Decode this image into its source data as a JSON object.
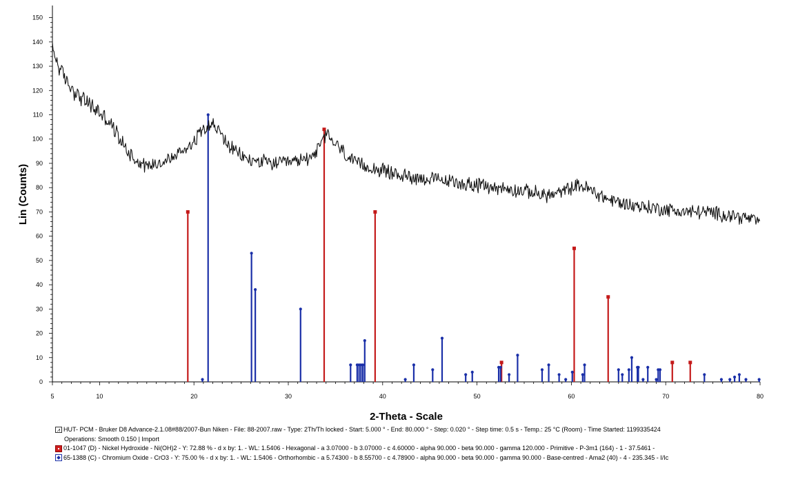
{
  "chart_data": {
    "type": "line",
    "xlabel": "2-Theta - Scale",
    "ylabel": "Lin (Counts)",
    "xlim": [
      5,
      80
    ],
    "ylim": [
      0,
      155
    ],
    "x_ticks": [
      5,
      10,
      20,
      30,
      40,
      50,
      60,
      70,
      80
    ],
    "y_ticks": [
      0,
      10,
      20,
      30,
      40,
      50,
      60,
      70,
      80,
      90,
      100,
      110,
      120,
      130,
      140,
      150
    ],
    "grid": false,
    "colors": {
      "measured": "#111111",
      "nickel_hydroxide": "#c41a1a",
      "chromium_oxide": "#1a2fa8"
    },
    "measured_profile": {
      "x": [
        5,
        5.5,
        6,
        7,
        8,
        9,
        10,
        11,
        12,
        13,
        14,
        15,
        16,
        17,
        18,
        19,
        20,
        20.5,
        21,
        21.5,
        22,
        22.5,
        23,
        24,
        25,
        26,
        27,
        28,
        29,
        30,
        31,
        32,
        33,
        33.5,
        34,
        35,
        36,
        37,
        38,
        39,
        40,
        42,
        44,
        46,
        48,
        50,
        52,
        54,
        56,
        57,
        58,
        59,
        60,
        61,
        62,
        63,
        64,
        66,
        68,
        70,
        72,
        74,
        76,
        78,
        80
      ],
      "y": [
        137,
        132,
        127,
        121,
        117,
        114,
        111,
        107,
        101,
        95,
        91,
        89,
        90,
        91,
        93,
        96,
        99,
        102,
        105,
        106,
        106,
        104,
        101,
        96,
        93,
        91,
        91,
        90,
        90,
        90,
        91,
        92,
        95,
        98,
        102,
        98,
        94,
        90,
        89,
        88,
        87,
        85,
        84,
        83,
        82,
        81,
        80,
        79,
        78,
        77,
        77,
        78,
        80,
        81,
        79,
        77,
        75,
        73,
        72,
        71,
        70,
        70,
        69,
        68,
        66
      ]
    },
    "nickel_hydroxide_sticks": {
      "x": [
        19.35,
        33.8,
        39.2,
        52.6,
        60.3,
        63.9,
        70.7,
        72.6
      ],
      "y": [
        70,
        104,
        70,
        8,
        55,
        35,
        8,
        8
      ]
    },
    "chromium_oxide_sticks": {
      "x": [
        20.9,
        21.5,
        26.1,
        26.5,
        31.3,
        36.6,
        37.3,
        37.5,
        37.7,
        37.9,
        38.1,
        42.4,
        43.3,
        45.3,
        46.3,
        48.8,
        49.5,
        52.3,
        52.5,
        53.4,
        54.3,
        56.9,
        57.6,
        58.7,
        59.4,
        60.1,
        61.2,
        61.4,
        65.0,
        65.4,
        66.1,
        66.4,
        67.0,
        67.1,
        67.6,
        68.1,
        69.0,
        69.2,
        69.4,
        74.1,
        75.9,
        76.8,
        77.3,
        77.8,
        78.5,
        79.9
      ],
      "y": [
        1,
        110,
        53,
        38,
        30,
        7,
        7,
        7,
        7,
        7,
        17,
        1,
        7,
        5,
        18,
        3,
        4,
        6,
        6,
        3,
        11,
        5,
        7,
        3,
        1,
        4,
        3,
        7,
        5,
        3,
        5,
        10,
        6,
        6,
        1,
        6,
        1,
        5,
        5,
        3,
        1,
        1,
        2,
        3,
        1,
        1
      ]
    }
  },
  "legend": {
    "line1": "HUT- PCM - Bruker D8  Advance-2.1.08#88/2007-Bun Niken - File: 88-2007.raw - Type: 2Th/Th locked - Start: 5.000 ° - End: 80.000 ° - Step: 0.020 ° - Step time: 0.5 s - Temp.: 25 °C (Room) - Time Started: 1199335424",
    "line2": "Operations: Smooth 0.150 | Import",
    "line3": "01-1047 (D) - Nickel Hydroxide - Ni(OH)2 - Y: 72.88 % - d x by: 1. - WL: 1.5406 - Hexagonal - a 3.07000 - b 3.07000 - c 4.60000 - alpha 90.000 - beta 90.000 - gamma 120.000 - Primitive - P-3m1 (164) - 1 - 37.5461 -",
    "line4": "65-1388 (C) - Chromium Oxide - CrO3 - Y: 75.00 % - d x by: 1. - WL: 1.5406 - Orthorhombic - a 5.74300 - b 8.55700 - c 4.78900 - alpha 90.000 - beta 90.000 - gamma 90.000 - Base-centred - Ama2 (40) - 4 - 235.345 - I/Ic"
  }
}
